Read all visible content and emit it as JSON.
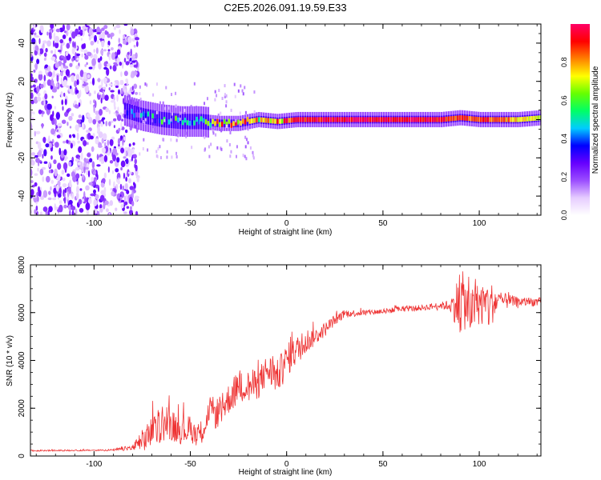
{
  "title": "C2E5.2026.091.19.59.E33",
  "chart_data": [
    {
      "type": "heatmap",
      "xlabel": "Height of straight line (km)",
      "ylabel": "Frequency (Hz)",
      "xlim": [
        -133,
        132
      ],
      "ylim": [
        -50,
        50
      ],
      "xticks": [
        -100,
        -50,
        0,
        50,
        100
      ],
      "yticks": [
        -40,
        -20,
        0,
        20,
        40
      ],
      "colorbar": {
        "label": "Normalized spectral amplitude",
        "range": [
          0,
          1
        ],
        "ticks": [
          0.0,
          0.2,
          0.4,
          0.6,
          0.8
        ],
        "colors": [
          "#ffffff",
          "#e6ccff",
          "#9b4dff",
          "#6600ff",
          "#0000ff",
          "#00ccff",
          "#00ff66",
          "#66ff00",
          "#ffff00",
          "#ff8000",
          "#ff0000",
          "#ff0066"
        ]
      },
      "noise_region_x": [
        -133,
        -77
      ],
      "ridge": [
        {
          "x": -85,
          "freq": 5,
          "amp": 0.25
        },
        {
          "x": -75,
          "freq": 2,
          "amp": 0.35
        },
        {
          "x": -65,
          "freq": 0,
          "amp": 0.45
        },
        {
          "x": -55,
          "freq": -1,
          "amp": 0.5
        },
        {
          "x": -45,
          "freq": -1,
          "amp": 0.55
        },
        {
          "x": -35,
          "freq": -2,
          "amp": 0.75
        },
        {
          "x": -25,
          "freq": -2,
          "amp": 0.8
        },
        {
          "x": -15,
          "freq": 0,
          "amp": 0.7
        },
        {
          "x": -5,
          "freq": -1,
          "amp": 0.75
        },
        {
          "x": 5,
          "freq": 0,
          "amp": 0.9
        },
        {
          "x": 20,
          "freq": 0,
          "amp": 0.95
        },
        {
          "x": 40,
          "freq": 0,
          "amp": 0.95
        },
        {
          "x": 60,
          "freq": 0,
          "amp": 0.95
        },
        {
          "x": 80,
          "freq": 0,
          "amp": 0.92
        },
        {
          "x": 90,
          "freq": 1,
          "amp": 0.85
        },
        {
          "x": 100,
          "freq": 0,
          "amp": 0.9
        },
        {
          "x": 110,
          "freq": 0,
          "amp": 0.85
        },
        {
          "x": 120,
          "freq": 0,
          "amp": 0.75
        },
        {
          "x": 132,
          "freq": 1,
          "amp": 0.7
        }
      ]
    },
    {
      "type": "line",
      "xlabel": "Height of straight line (km)",
      "ylabel": "SNR (10 * v/v)",
      "xlim": [
        -133,
        132
      ],
      "ylim": [
        0,
        8000
      ],
      "xticks": [
        -100,
        -50,
        0,
        50,
        100
      ],
      "yticks": [
        0,
        2000,
        4000,
        6000,
        8000
      ],
      "series": [
        {
          "name": "SNR",
          "color": "#ee3333",
          "x": [
            -133,
            -120,
            -100,
            -90,
            -80,
            -75,
            -70,
            -65,
            -60,
            -55,
            -50,
            -45,
            -40,
            -35,
            -30,
            -25,
            -20,
            -15,
            -10,
            -5,
            0,
            5,
            10,
            15,
            20,
            25,
            30,
            40,
            50,
            60,
            70,
            80,
            85,
            90,
            92,
            95,
            100,
            105,
            110,
            120,
            132
          ],
          "y": [
            220,
            230,
            240,
            250,
            350,
            600,
            1000,
            1300,
            1300,
            1100,
            1100,
            900,
            1800,
            1800,
            2400,
            2900,
            2900,
            3000,
            3600,
            3300,
            4000,
            4400,
            4800,
            5000,
            5300,
            5700,
            5950,
            6000,
            6050,
            6150,
            6200,
            6300,
            6300,
            6400,
            6500,
            6000,
            6400,
            6300,
            6500,
            6450,
            6450
          ],
          "noise": [
            30,
            30,
            30,
            40,
            120,
            500,
            700,
            700,
            650,
            600,
            600,
            500,
            700,
            650,
            650,
            750,
            700,
            650,
            700,
            700,
            700,
            600,
            550,
            350,
            300,
            220,
            180,
            120,
            120,
            120,
            120,
            140,
            250,
            1400,
            1200,
            900,
            900,
            1100,
            400,
            200,
            180
          ]
        }
      ]
    }
  ]
}
